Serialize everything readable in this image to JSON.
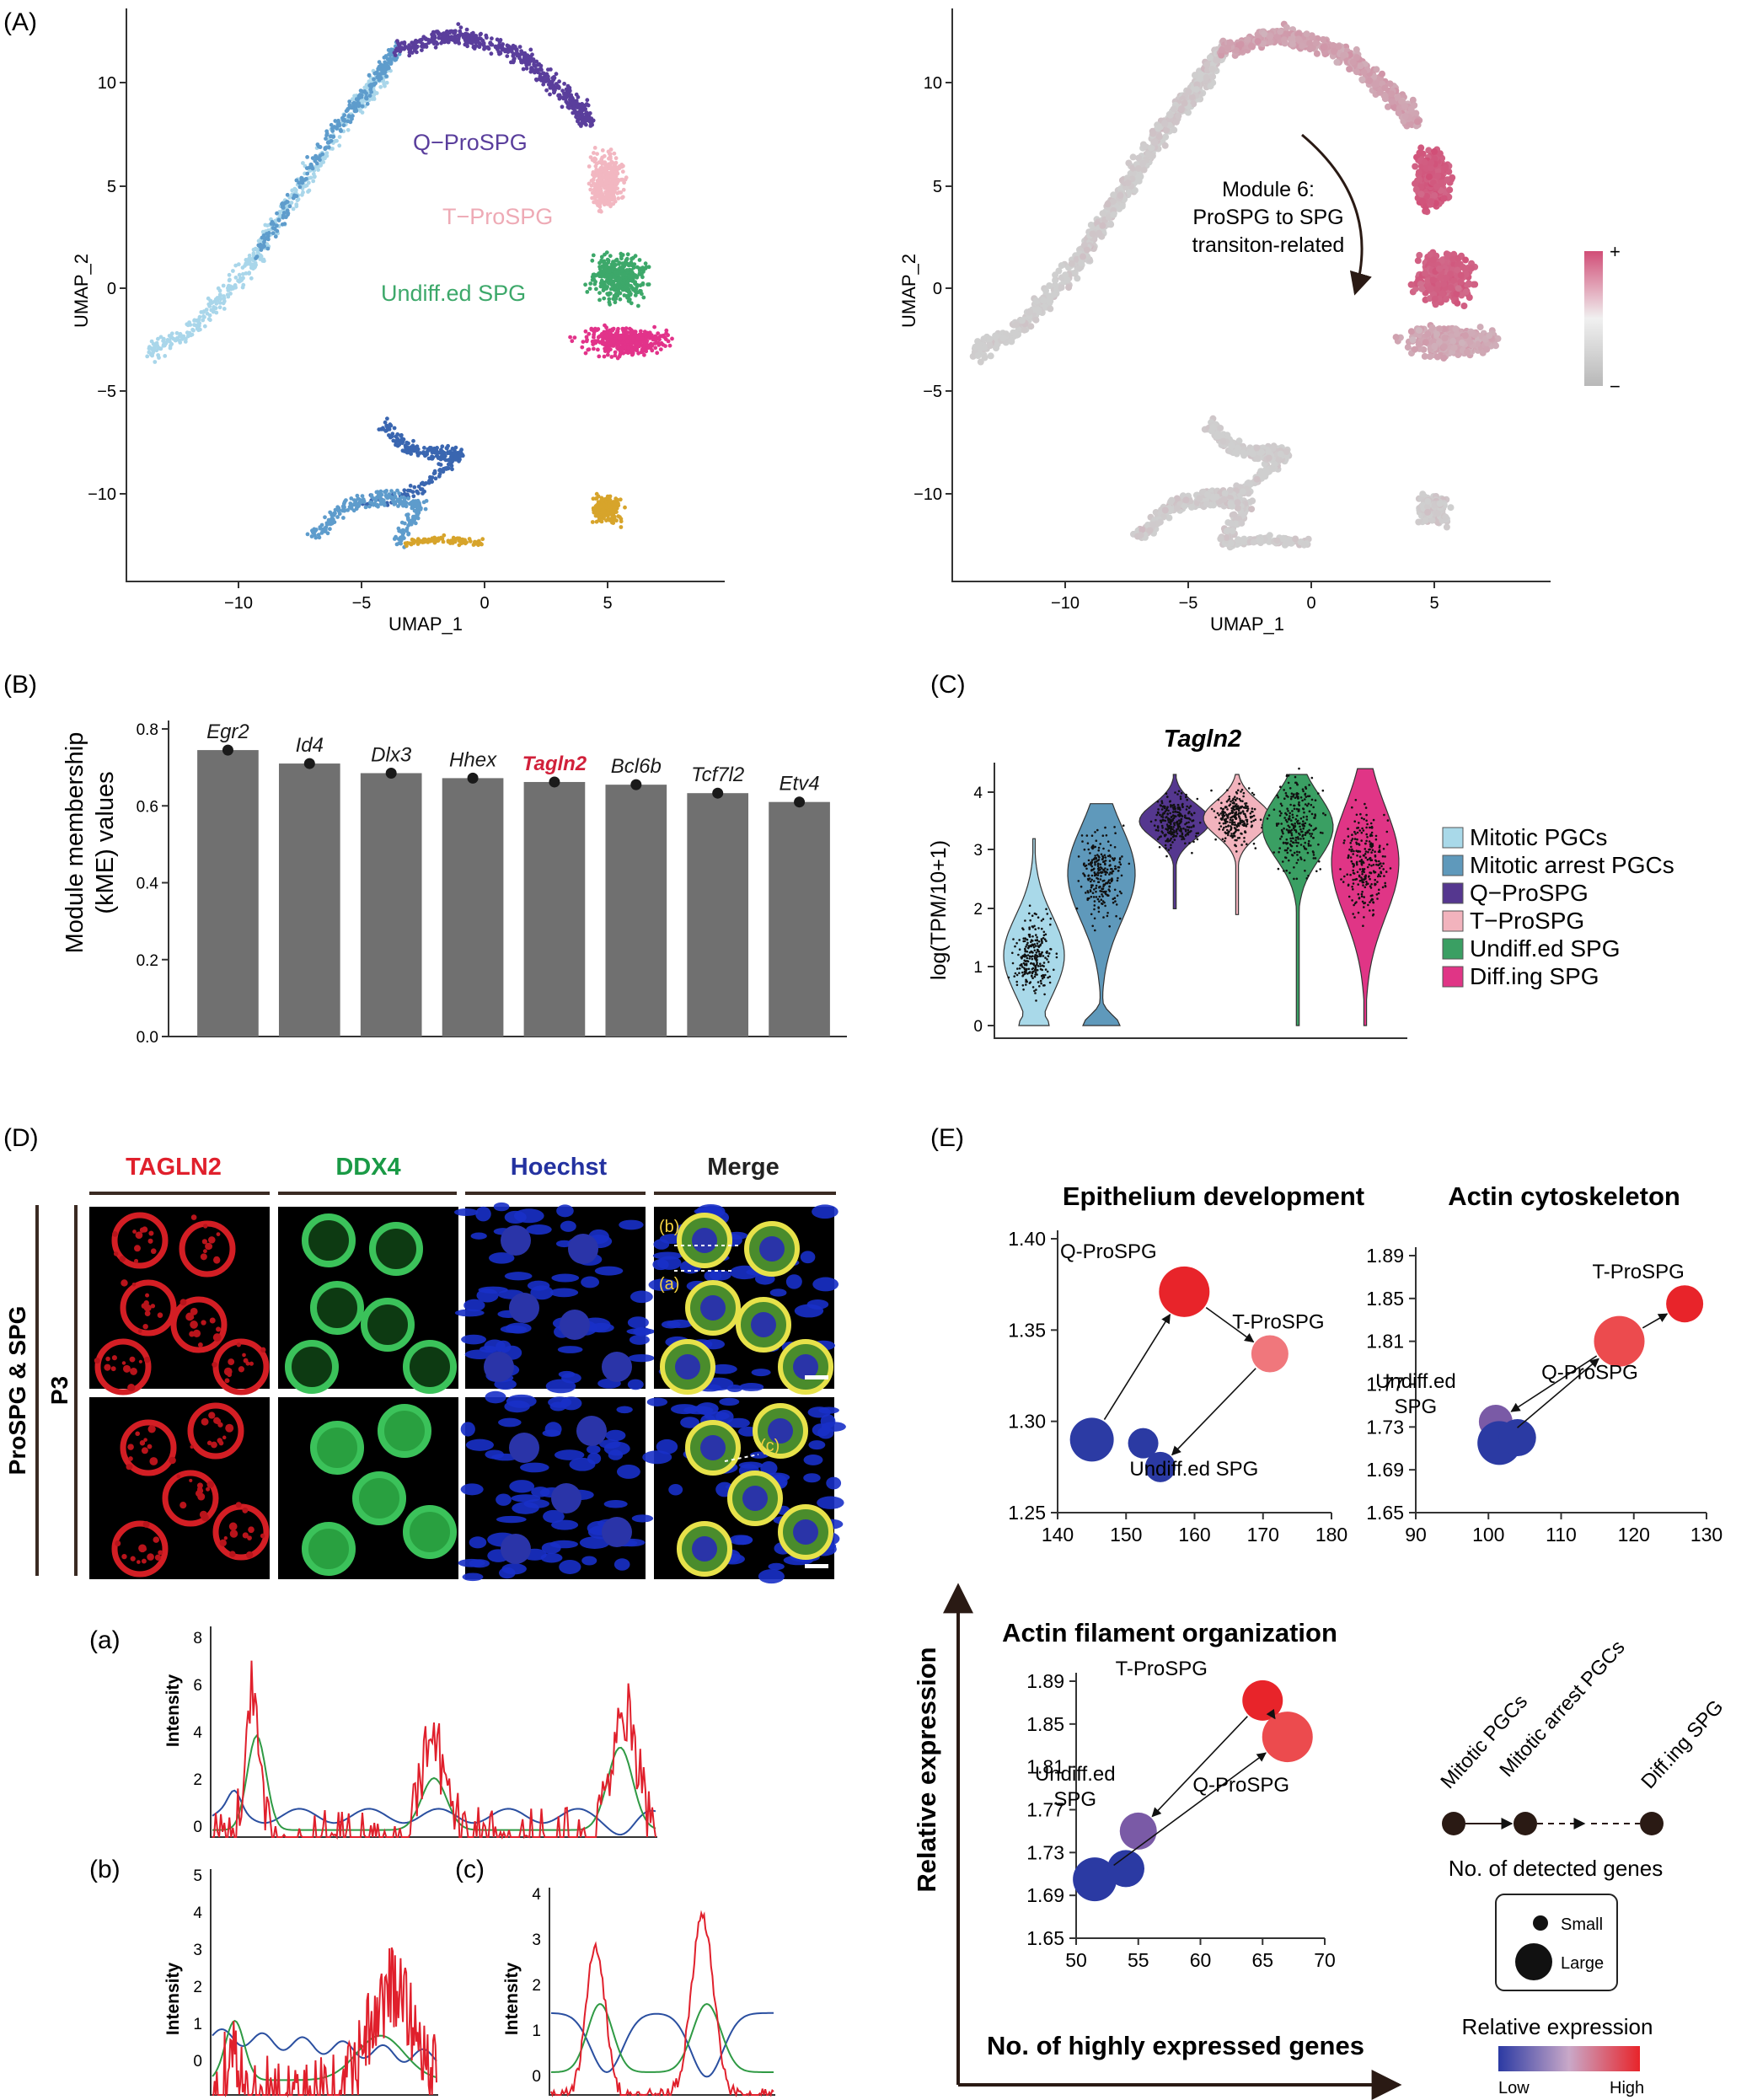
{
  "panels": {
    "A": {
      "label": "(A)",
      "xlabel": "UMAP_1",
      "ylabel": "UMAP_2",
      "xticks": [
        "−10",
        "−5",
        "0",
        "5"
      ],
      "yticks": [
        "10",
        "5",
        "0",
        "−5",
        "−10"
      ],
      "cluster_labels": [
        "Q−ProSPG",
        "T−ProSPG",
        "Undiff.ed SPG"
      ],
      "module_annotation": [
        "Module 6:",
        "ProSPG to SPG",
        "transiton-related"
      ],
      "colorbar_plus": "+",
      "colorbar_minus": "−",
      "colors": {
        "mitotic_pgc": "#a9d6ea",
        "mitotic_arrest": "#5e9ccc",
        "q_prospg": "#5a3e9c",
        "t_prospg": "#f2b7c1",
        "undiff": "#3da86a",
        "diffing": "#e2338a",
        "other_blue": "#3a66b0",
        "gold": "#d7a42b",
        "module_high": "#d14e77",
        "module_low": "#cfcfcf"
      }
    },
    "B": {
      "label": "(B)",
      "ylabel_line1": "Module membership",
      "ylabel_line2": "(kME) values"
    },
    "C": {
      "label": "(C)",
      "title": "Tagln2",
      "ylabel": "log(TPM/10+1)",
      "yticks": [
        "4",
        "3",
        "2",
        "1",
        "0"
      ],
      "legend": [
        {
          "name": "Mitotic PGCs",
          "color": "#a9d9e9"
        },
        {
          "name": "Mitotic arrest PGCs",
          "color": "#5f99bb"
        },
        {
          "name": "Q−ProSPG",
          "color": "#55378f"
        },
        {
          "name": "T−ProSPG",
          "color": "#f2b3bd"
        },
        {
          "name": "Undiff.ed SPG",
          "color": "#3a9f63"
        },
        {
          "name": "Diff.ing SPG",
          "color": "#e03586"
        }
      ]
    },
    "D": {
      "label": "(D)",
      "channels": [
        {
          "name": "TAGLN2",
          "color": "#e0202c"
        },
        {
          "name": "DDX4",
          "color": "#1a9a46"
        },
        {
          "name": "Hoechst",
          "color": "#2432a0"
        },
        {
          "name": "Merge",
          "color": "#222222"
        }
      ],
      "row_label_outer": "ProSPG & SPG",
      "row_label_inner": "P3",
      "inset_labels": [
        "(b)",
        "(a)",
        "(c)"
      ],
      "profile_a": {
        "label": "(a)",
        "ylabel": "Intensity",
        "yticks": [
          "8",
          "6",
          "4",
          "2",
          "0"
        ]
      },
      "profile_b": {
        "label": "(b)",
        "ylabel": "Intensity",
        "yticks": [
          "5",
          "4",
          "3",
          "2",
          "1",
          "0"
        ]
      },
      "profile_c": {
        "label": "(c)",
        "ylabel": "Intensity",
        "yticks": [
          "4",
          "3",
          "2",
          "1",
          "0"
        ]
      }
    },
    "E": {
      "label": "(E)",
      "axis_y": "Relative expression",
      "axis_x": "No. of highly expressed genes",
      "lineage": [
        "Mitotic PGCs",
        "Mitotic arrest PGCs",
        "Diff.ing SPG"
      ],
      "size_legend_title": "No. of detected genes",
      "size_small": "Small",
      "size_large": "Large",
      "color_legend_title": "Relative expression",
      "color_low": "Low",
      "color_high": "High"
    }
  },
  "chart_data": [
    {
      "type": "bar",
      "title": "",
      "xlabel": "",
      "ylabel": "Module membership (kME) values",
      "categories": [
        "Egr2",
        "Id4",
        "Dlx3",
        "Hhex",
        "Tagln2",
        "Bcl6b",
        "Tcf7l2",
        "Etv4"
      ],
      "highlight": "Tagln2",
      "values": [
        0.745,
        0.71,
        0.685,
        0.672,
        0.662,
        0.655,
        0.633,
        0.61
      ],
      "ylim": [
        0,
        0.8
      ],
      "yticks": [
        "0.0",
        "0.2",
        "0.4",
        "0.6",
        "0.8"
      ],
      "bar_color": "#707070",
      "highlight_color": "#d1203a"
    },
    {
      "type": "scatter",
      "title": "Epithelium development",
      "xlim": [
        140,
        180
      ],
      "ylim": [
        1.25,
        1.4
      ],
      "xticks": [
        "140",
        "150",
        "160",
        "170",
        "180"
      ],
      "yticks": [
        "1.40",
        "1.35",
        "1.30",
        "1.25"
      ],
      "points": [
        {
          "label": "Q-ProSPG",
          "x": 158.5,
          "y": 1.371,
          "color": "#e8242a"
        },
        {
          "label": "T-ProSPG",
          "x": 171,
          "y": 1.337,
          "color": "#f0777c"
        },
        {
          "label": "Undiff.ed SPG",
          "x": 155,
          "y": 1.275,
          "color": "#2b3aa3"
        },
        {
          "label": "",
          "x": 145,
          "y": 1.29,
          "color": "#2c3ba4"
        },
        {
          "label": "",
          "x": 152.5,
          "y": 1.288,
          "color": "#2b3aa3"
        }
      ]
    },
    {
      "type": "scatter",
      "title": "Actin cytoskeleton",
      "xlim": [
        90,
        130
      ],
      "ylim": [
        1.65,
        1.89
      ],
      "xticks": [
        "90",
        "100",
        "110",
        "120",
        "130"
      ],
      "yticks": [
        "1.89",
        "1.85",
        "1.81",
        "1.77",
        "1.73",
        "1.69",
        "1.65"
      ],
      "points": [
        {
          "label": "T-ProSPG",
          "x": 127,
          "y": 1.845,
          "color": "#e8242a"
        },
        {
          "label": "Q-ProSPG",
          "x": 118,
          "y": 1.81,
          "color": "#ec4b4e"
        },
        {
          "label": "Undiff.ed SPG",
          "x": 101,
          "y": 1.735,
          "color": "#7a5aa6"
        },
        {
          "label": "",
          "x": 101.5,
          "y": 1.715,
          "color": "#2b3aa3"
        },
        {
          "label": "",
          "x": 104,
          "y": 1.72,
          "color": "#2b3aa3"
        }
      ]
    },
    {
      "type": "scatter",
      "title": "Actin filament organization",
      "xlim": [
        50,
        70
      ],
      "ylim": [
        1.65,
        1.89
      ],
      "xticks": [
        "50",
        "55",
        "60",
        "65",
        "70"
      ],
      "yticks": [
        "1.89",
        "1.85",
        "1.81",
        "1.77",
        "1.73",
        "1.69",
        "1.65"
      ],
      "points": [
        {
          "label": "T-ProSPG",
          "x": 65,
          "y": 1.872,
          "color": "#e8242a"
        },
        {
          "label": "Q-ProSPG",
          "x": 67,
          "y": 1.838,
          "color": "#ec4b4e"
        },
        {
          "label": "Undiff.ed SPG",
          "x": 55,
          "y": 1.75,
          "color": "#7a5aa6"
        },
        {
          "label": "",
          "x": 51.5,
          "y": 1.705,
          "color": "#2b3aa3"
        },
        {
          "label": "",
          "x": 54,
          "y": 1.715,
          "color": "#2b3aa3"
        }
      ]
    }
  ]
}
